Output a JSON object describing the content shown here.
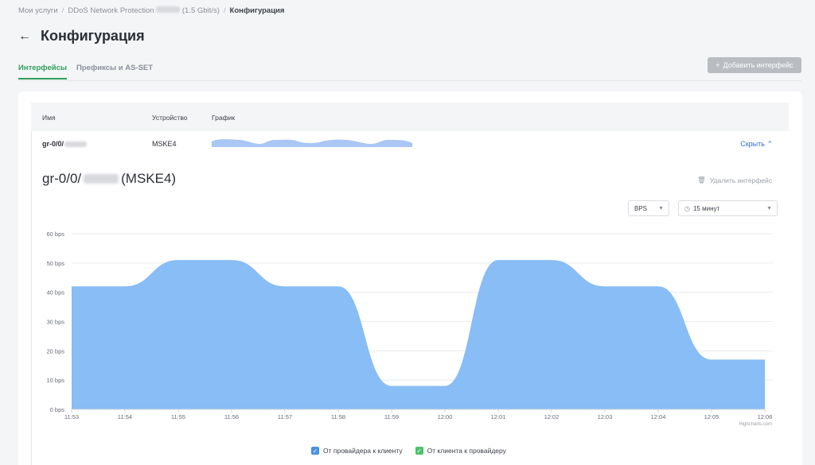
{
  "breadcrumb": {
    "item1": "Мои услуги",
    "item2a": "DDoS Network Protection",
    "item2b": "(1.5 Gbit/s)",
    "current": "Конфигурация",
    "sep": "/"
  },
  "page": {
    "title": "Конфигурация"
  },
  "tabs": [
    {
      "label": "Интерфейсы"
    },
    {
      "label": "Префиксы и AS-SET"
    }
  ],
  "add_button": {
    "label": "Добавить интерфейс"
  },
  "table": {
    "headers": {
      "name": "Имя",
      "device": "Устройство",
      "graph": "График"
    },
    "row": {
      "name": "gr-0/0/",
      "device": "MSKE4",
      "hide_label": "Скрыть"
    }
  },
  "detail": {
    "title_prefix": "gr-0/0/",
    "title_suffix": "(MSKE4)",
    "delete_label": "Удалить интерфейс"
  },
  "controls": {
    "unit": "BPS",
    "range": "15 минут"
  },
  "legend": [
    {
      "label": "От провайдера к клиенту",
      "color": "#4a90e2"
    },
    {
      "label": "От клиента к провайдеру",
      "color": "#4cc36a"
    }
  ],
  "credits": "Highcharts.com",
  "chart_data": {
    "type": "area",
    "x": [
      "11:53",
      "11:54",
      "11:55",
      "11:56",
      "11:57",
      "11:58",
      "11:59",
      "12:00",
      "12:01",
      "12:02",
      "12:03",
      "12:04",
      "12:05",
      "12:06"
    ],
    "series": [
      {
        "name": "От провайдера к клиенту",
        "values": [
          42,
          42,
          51,
          51,
          42,
          42,
          8,
          8,
          51,
          51,
          42,
          42,
          17,
          17
        ],
        "color": "#88bdf5"
      }
    ],
    "yticks": [
      "0 bps",
      "10 bps",
      "20 bps",
      "30 bps",
      "40 bps",
      "50 bps",
      "60 bps"
    ],
    "ylim": [
      0,
      60
    ],
    "grid": true
  }
}
